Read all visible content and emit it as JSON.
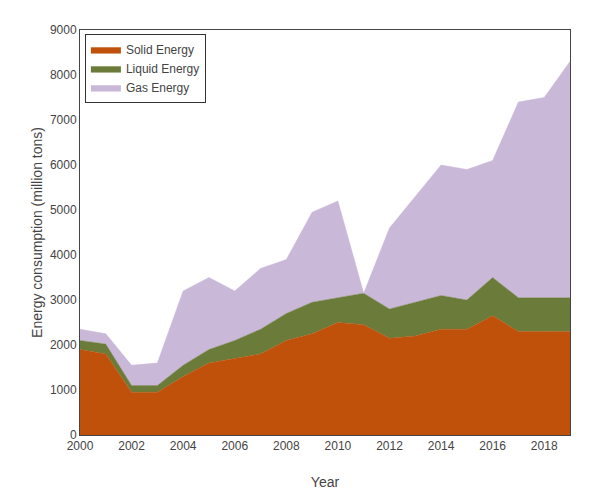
{
  "chart_data": {
    "type": "area",
    "stacked": true,
    "xlabel": "Year",
    "ylabel": "Energy consumption (million tons)",
    "x": [
      2000,
      2001,
      2002,
      2003,
      2004,
      2005,
      2006,
      2007,
      2008,
      2009,
      2010,
      2011,
      2012,
      2013,
      2014,
      2015,
      2016,
      2017,
      2018,
      2019
    ],
    "series": [
      {
        "name": "Solid Energy",
        "color": "#c0510a",
        "values": [
          1900,
          1800,
          950,
          950,
          1300,
          1600,
          1700,
          1800,
          2100,
          2250,
          2500,
          2450,
          2150,
          2200,
          2350,
          2350,
          2650,
          2300,
          2300,
          2300
        ]
      },
      {
        "name": "Liquid Energy",
        "color": "#6b7c3a",
        "values": [
          200,
          220,
          150,
          150,
          250,
          300,
          400,
          550,
          600,
          700,
          550,
          700,
          650,
          750,
          750,
          650,
          850,
          750,
          750,
          750
        ]
      },
      {
        "name": "Gas Energy",
        "color": "#c9b8d8",
        "values": [
          250,
          230,
          450,
          500,
          1650,
          1600,
          1100,
          1350,
          1200,
          2000,
          2150,
          0,
          1800,
          2350,
          2900,
          2900,
          2600,
          4350,
          4450,
          5250
        ]
      }
    ],
    "xlim": [
      2000,
      2019
    ],
    "xticks": [
      2000,
      2002,
      2004,
      2006,
      2008,
      2010,
      2012,
      2014,
      2016,
      2018
    ],
    "ylim": [
      0,
      9000
    ],
    "yticks": [
      0,
      1000,
      2000,
      3000,
      4000,
      5000,
      6000,
      7000,
      8000,
      9000
    ],
    "grid": false,
    "legend": "upper left"
  }
}
